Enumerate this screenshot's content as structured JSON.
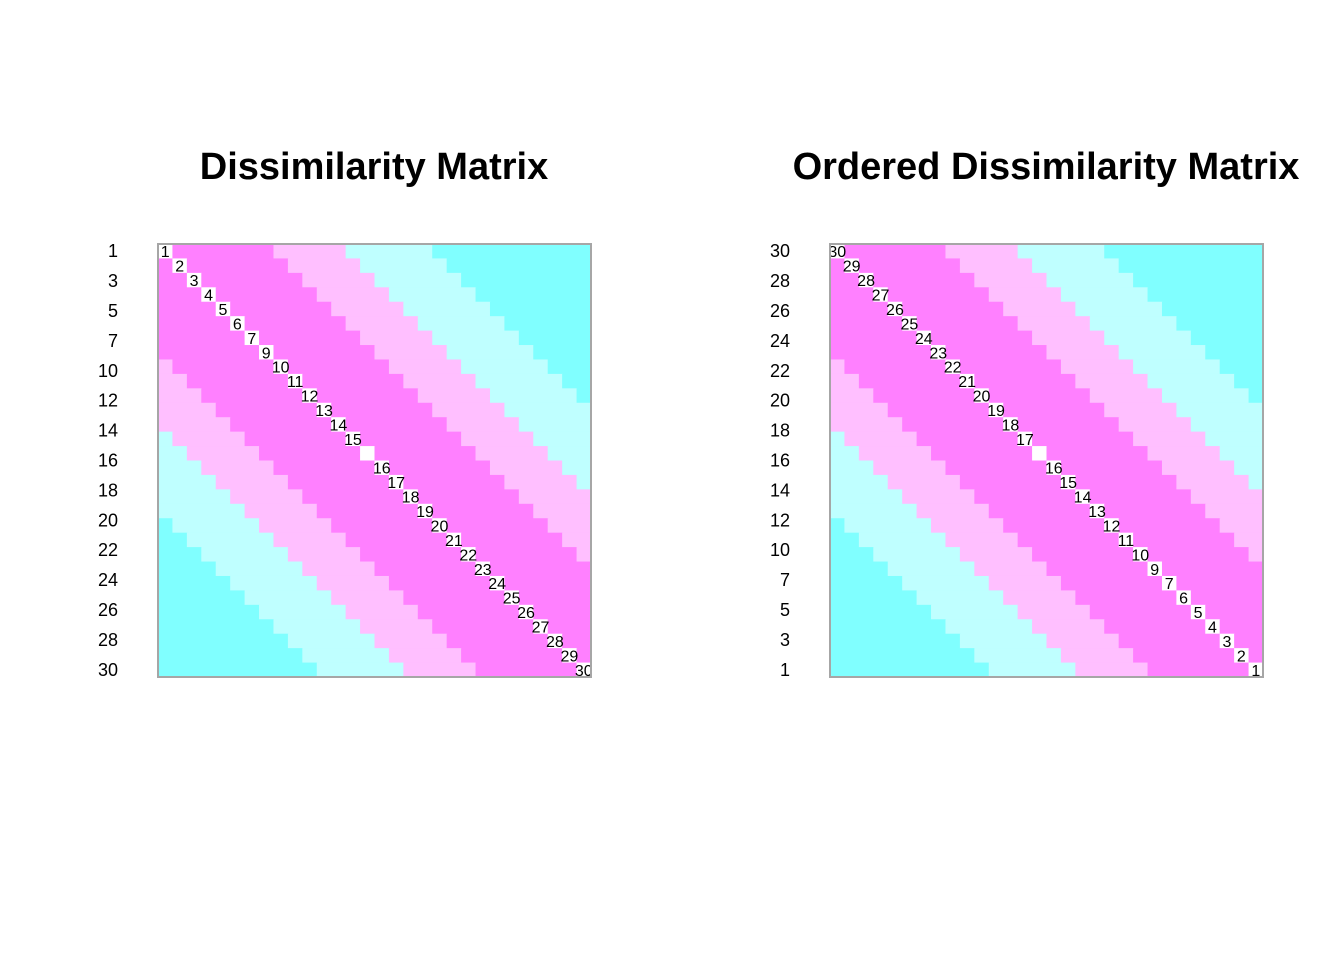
{
  "palette": {
    "level_0": "#FF80FF",
    "level_1": "#FFBFFF",
    "level_2": "#BFFFFF",
    "level_3": "#80FFFF",
    "diagonal": "#FFFFFF",
    "frame": "#A6A6A6"
  },
  "chart_data": [
    {
      "type": "heatmap",
      "title": "Dissimilarity Matrix",
      "n": 30,
      "row_order": [
        1,
        2,
        3,
        4,
        5,
        6,
        7,
        8,
        9,
        10,
        11,
        12,
        13,
        14,
        15,
        16,
        17,
        18,
        19,
        20,
        21,
        22,
        23,
        24,
        25,
        26,
        27,
        28,
        29,
        30
      ],
      "row_labels": [
        "1",
        "3",
        "5",
        "7",
        "10",
        "12",
        "14",
        "16",
        "18",
        "20",
        "22",
        "24",
        "26",
        "28",
        "30"
      ],
      "diagonal_labels": [
        "1",
        "2",
        "3",
        "4",
        "5",
        "6",
        "7",
        "9",
        "10",
        "11",
        "12",
        "13",
        "14",
        "15",
        "16",
        "17",
        "18",
        "19",
        "20",
        "21",
        "22",
        "23",
        "24",
        "25",
        "26",
        "27",
        "28",
        "29",
        "30"
      ],
      "band_widths": [
        7,
        12,
        18
      ],
      "color_levels": [
        "level_0",
        "level_1",
        "level_2",
        "level_3"
      ],
      "grid": false
    },
    {
      "type": "heatmap",
      "title": "Ordered Dissimilarity Matrix",
      "n": 30,
      "row_order": [
        30,
        29,
        28,
        27,
        26,
        25,
        24,
        23,
        22,
        21,
        20,
        19,
        18,
        17,
        16,
        15,
        14,
        13,
        12,
        11,
        10,
        9,
        8,
        7,
        6,
        5,
        4,
        3,
        2,
        1
      ],
      "row_labels": [
        "30",
        "28",
        "26",
        "24",
        "22",
        "20",
        "18",
        "16",
        "14",
        "12",
        "10",
        "7",
        "5",
        "3",
        "1"
      ],
      "diagonal_labels": [
        "30",
        "29",
        "28",
        "27",
        "26",
        "25",
        "24",
        "23",
        "22",
        "21",
        "20",
        "19",
        "18",
        "17",
        "16",
        "15",
        "14",
        "13",
        "12",
        "11",
        "10",
        "9",
        "7",
        "6",
        "5",
        "4",
        "3",
        "2",
        "1"
      ],
      "band_widths": [
        7,
        12,
        18
      ],
      "color_levels": [
        "level_0",
        "level_1",
        "level_2",
        "level_3"
      ],
      "grid": false
    }
  ]
}
